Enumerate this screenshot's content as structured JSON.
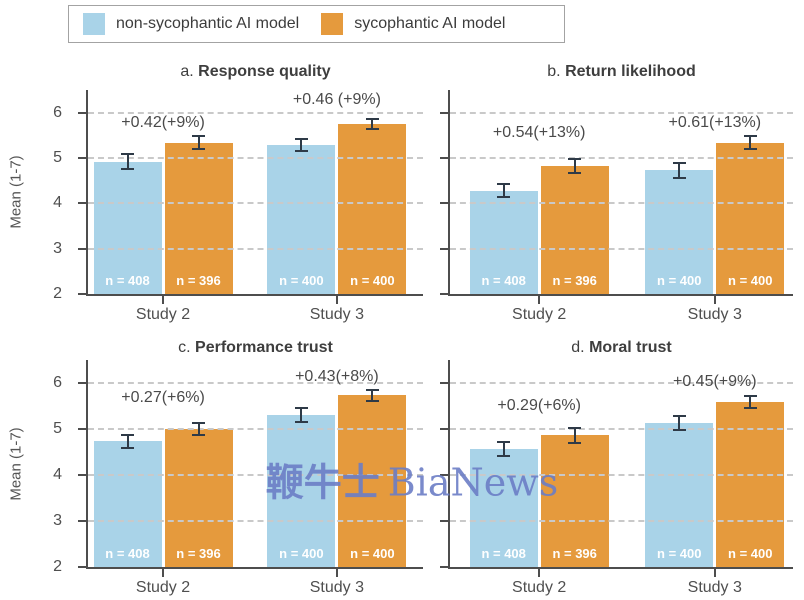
{
  "legend": {
    "items": [
      {
        "label": "non-sycophantic AI model",
        "color": "#A9D3E8"
      },
      {
        "label": "sycophantic AI model",
        "color": "#E59A3D"
      }
    ]
  },
  "watermark": {
    "cn": "鞭牛士",
    "en": "BiaNews",
    "color": "#6C7EC6"
  },
  "colors": {
    "error_bar": "#2E3A47",
    "grid": "#C9C9C9",
    "axis": "#4D4D4D",
    "annotation_text": "#4A4A4A"
  },
  "chart_data": [
    {
      "type": "bar",
      "panel": "a.",
      "title": "Response quality",
      "categories": [
        "Study 2",
        "Study 3"
      ],
      "ylabel": "Mean (1-7)",
      "ylim": [
        2,
        6.5
      ],
      "yticks": [
        2,
        3,
        4,
        5,
        6
      ],
      "grid": "dashed horizontal at 3,4,5,6",
      "legend_position": "top outside",
      "series": [
        {
          "name": "non-sycophantic AI model",
          "values": [
            4.92,
            5.29
          ],
          "errors": [
            0.16,
            0.14
          ],
          "n_labels": [
            "n = 408",
            "n = 400"
          ]
        },
        {
          "name": "sycophantic AI model",
          "values": [
            5.34,
            5.75
          ],
          "errors": [
            0.15,
            0.12
          ],
          "n_labels": [
            "n = 396",
            "n = 400"
          ]
        }
      ],
      "annotations": [
        {
          "text": "+0.42(+9%)",
          "x_group": 0,
          "y": 5.78
        },
        {
          "text": "+0.46 (+9%)",
          "x_group": 1,
          "y": 6.28
        }
      ]
    },
    {
      "type": "bar",
      "panel": "b.",
      "title": "Return likelihood",
      "categories": [
        "Study 2",
        "Study 3"
      ],
      "ylabel": "Mean (1-7)",
      "ylim": [
        2,
        6.5
      ],
      "yticks": [
        2,
        3,
        4,
        5,
        6
      ],
      "grid": "dashed horizontal at 3,4,5,6",
      "series": [
        {
          "name": "non-sycophantic AI model",
          "values": [
            4.28,
            4.73
          ],
          "errors": [
            0.15,
            0.17
          ],
          "n_labels": [
            "n = 408",
            "n = 400"
          ]
        },
        {
          "name": "sycophantic AI model",
          "values": [
            4.82,
            5.34
          ],
          "errors": [
            0.16,
            0.14
          ],
          "n_labels": [
            "n = 396",
            "n = 400"
          ]
        }
      ],
      "annotations": [
        {
          "text": "+0.54(+13%)",
          "x_group": 0,
          "y": 5.56
        },
        {
          "text": "+0.61(+13%)",
          "x_group": 1,
          "y": 5.78
        }
      ]
    },
    {
      "type": "bar",
      "panel": "c.",
      "title": "Performance trust",
      "categories": [
        "Study 2",
        "Study 3"
      ],
      "ylabel": "Mean (1-7)",
      "ylim": [
        2,
        6.5
      ],
      "yticks": [
        2,
        3,
        4,
        5,
        6
      ],
      "grid": "dashed horizontal at 3,4,5,6",
      "series": [
        {
          "name": "non-sycophantic AI model",
          "values": [
            4.73,
            5.3
          ],
          "errors": [
            0.15,
            0.15
          ],
          "n_labels": [
            "n = 408",
            "n = 400"
          ]
        },
        {
          "name": "sycophantic AI model",
          "values": [
            5.0,
            5.73
          ],
          "errors": [
            0.14,
            0.12
          ],
          "n_labels": [
            "n = 396",
            "n = 400"
          ]
        }
      ],
      "annotations": [
        {
          "text": "+0.27(+6%)",
          "x_group": 0,
          "y": 5.67
        },
        {
          "text": "+0.43(+8%)",
          "x_group": 1,
          "y": 6.12
        }
      ]
    },
    {
      "type": "bar",
      "panel": "d.",
      "title": "Moral trust",
      "categories": [
        "Study 2",
        "Study 3"
      ],
      "ylabel": "Mean (1-7)",
      "ylim": [
        2,
        6.5
      ],
      "yticks": [
        2,
        3,
        4,
        5,
        6
      ],
      "grid": "dashed horizontal at 3,4,5,6",
      "series": [
        {
          "name": "non-sycophantic AI model",
          "values": [
            4.57,
            5.13
          ],
          "errors": [
            0.15,
            0.15
          ],
          "n_labels": [
            "n = 408",
            "n = 400"
          ]
        },
        {
          "name": "sycophantic AI model",
          "values": [
            4.86,
            5.58
          ],
          "errors": [
            0.16,
            0.13
          ],
          "n_labels": [
            "n = 396",
            "n = 400"
          ]
        }
      ],
      "annotations": [
        {
          "text": "+0.29(+6%)",
          "x_group": 0,
          "y": 5.5
        },
        {
          "text": "+0.45(+9%)",
          "x_group": 1,
          "y": 6.03
        }
      ]
    }
  ]
}
